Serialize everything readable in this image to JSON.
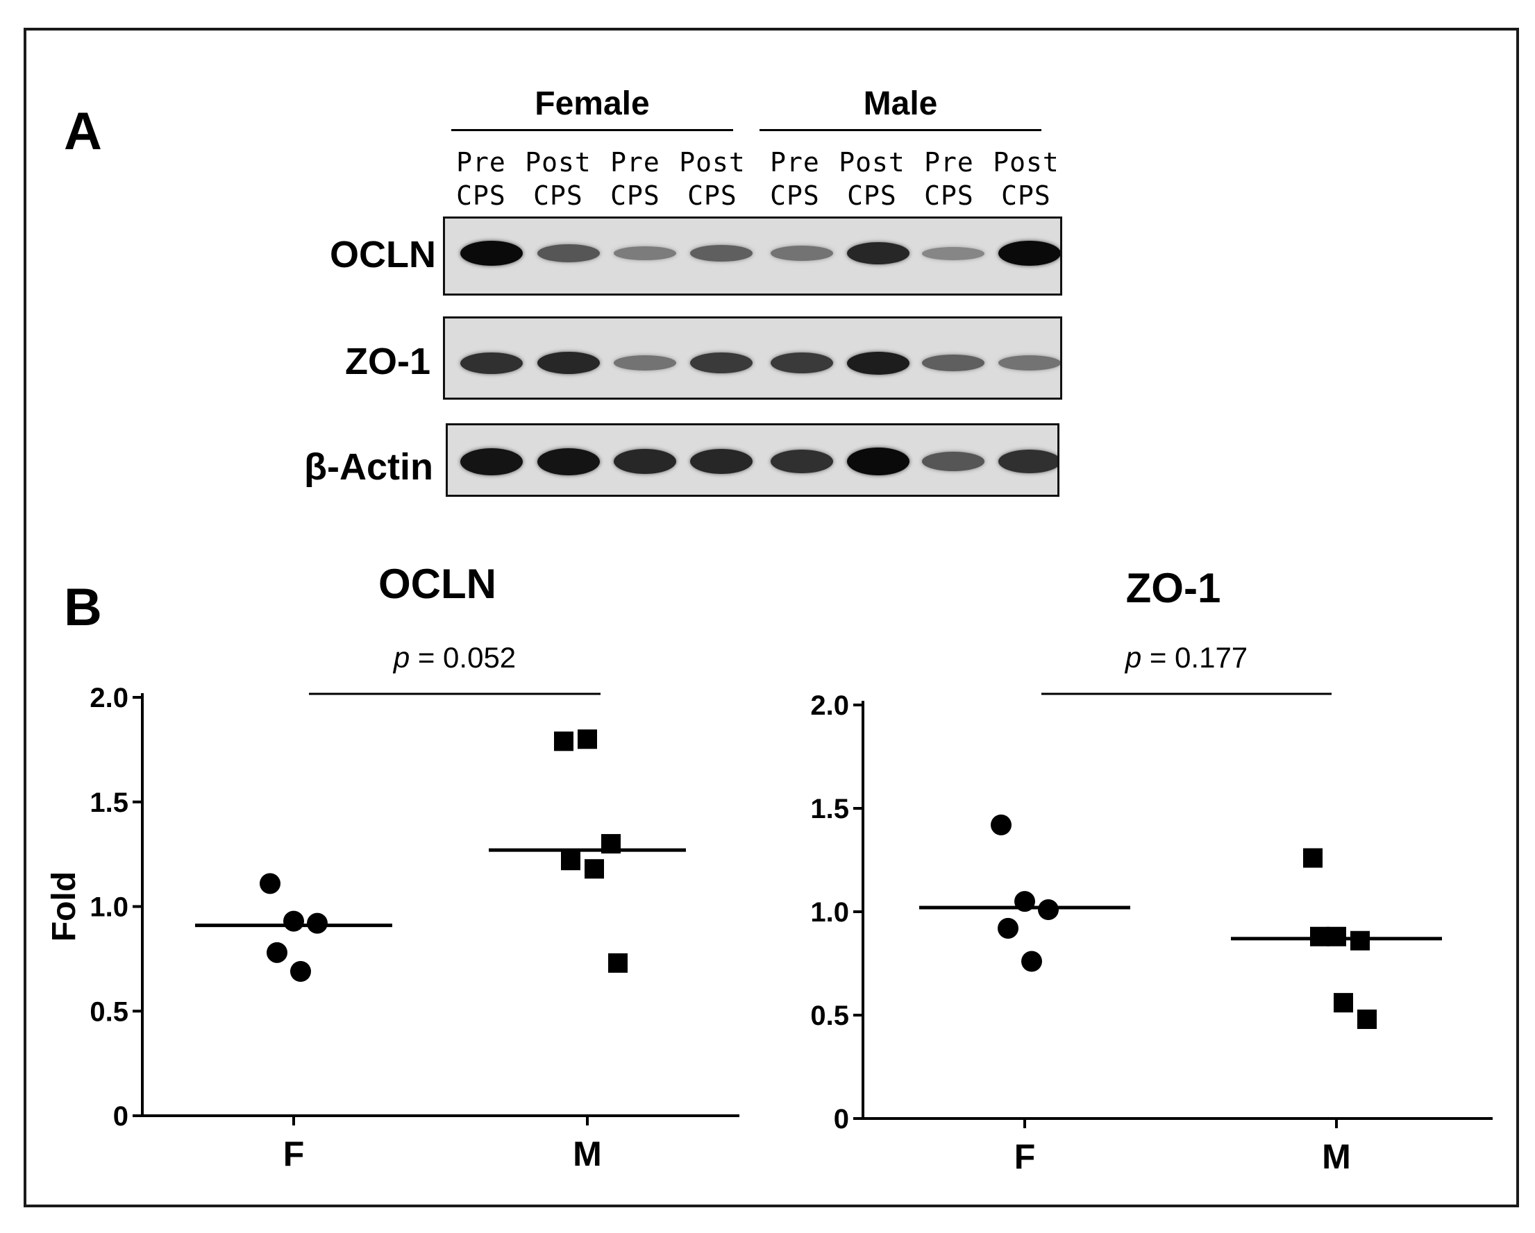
{
  "panel_a": {
    "letter": "A",
    "groups": [
      "Female",
      "Male"
    ],
    "lanes": [
      {
        "top": "Pre",
        "bottom": "CPS"
      },
      {
        "top": "Post",
        "bottom": "CPS"
      },
      {
        "top": "Pre",
        "bottom": "CPS"
      },
      {
        "top": "Post",
        "bottom": "CPS"
      },
      {
        "top": "Pre",
        "bottom": "CPS"
      },
      {
        "top": "Post",
        "bottom": "CPS"
      },
      {
        "top": "Pre",
        "bottom": "CPS"
      },
      {
        "top": "Post",
        "bottom": "CPS"
      }
    ],
    "blots": [
      {
        "label": "OCLN",
        "band_intensity": [
          1.0,
          0.6,
          0.4,
          0.55,
          0.45,
          0.85,
          0.35,
          1.0
        ]
      },
      {
        "label": "ZO-1",
        "band_intensity": [
          0.8,
          0.85,
          0.45,
          0.75,
          0.75,
          0.9,
          0.55,
          0.45
        ]
      },
      {
        "label": "β-Actin",
        "band_intensity": [
          0.95,
          0.95,
          0.85,
          0.85,
          0.8,
          1.0,
          0.6,
          0.8
        ]
      }
    ]
  },
  "panel_b": {
    "letter": "B"
  },
  "chart_data": [
    {
      "type": "scatter",
      "title": "OCLN",
      "ylabel": "Fold",
      "xlabel": "",
      "categories": [
        "F",
        "M"
      ],
      "ylim": [
        0,
        2.0
      ],
      "yticks": [
        "0",
        "0.5",
        "1.0",
        "1.5",
        "2.0"
      ],
      "annotation": {
        "prefix": "p",
        "text": " = 0.052"
      },
      "series": [
        {
          "category": "F",
          "marker": "circle",
          "values": [
            1.11,
            0.93,
            0.92,
            0.78,
            0.69
          ],
          "median": 0.91
        },
        {
          "category": "M",
          "marker": "square",
          "values": [
            1.79,
            1.8,
            1.3,
            1.22,
            1.18,
            0.73
          ],
          "median": 1.27
        }
      ]
    },
    {
      "type": "scatter",
      "title": "ZO-1",
      "ylabel": "",
      "xlabel": "",
      "categories": [
        "F",
        "M"
      ],
      "ylim": [
        0,
        2.0
      ],
      "yticks": [
        "0",
        "0.5",
        "1.0",
        "1.5",
        "2.0"
      ],
      "annotation": {
        "prefix": "p",
        "text": " = 0.177"
      },
      "series": [
        {
          "category": "F",
          "marker": "circle",
          "values": [
            1.42,
            1.05,
            1.01,
            0.92,
            0.76
          ],
          "median": 1.02
        },
        {
          "category": "M",
          "marker": "square",
          "values": [
            1.26,
            0.88,
            0.86,
            0.88,
            0.56,
            0.48
          ],
          "median": 0.87
        }
      ]
    }
  ]
}
